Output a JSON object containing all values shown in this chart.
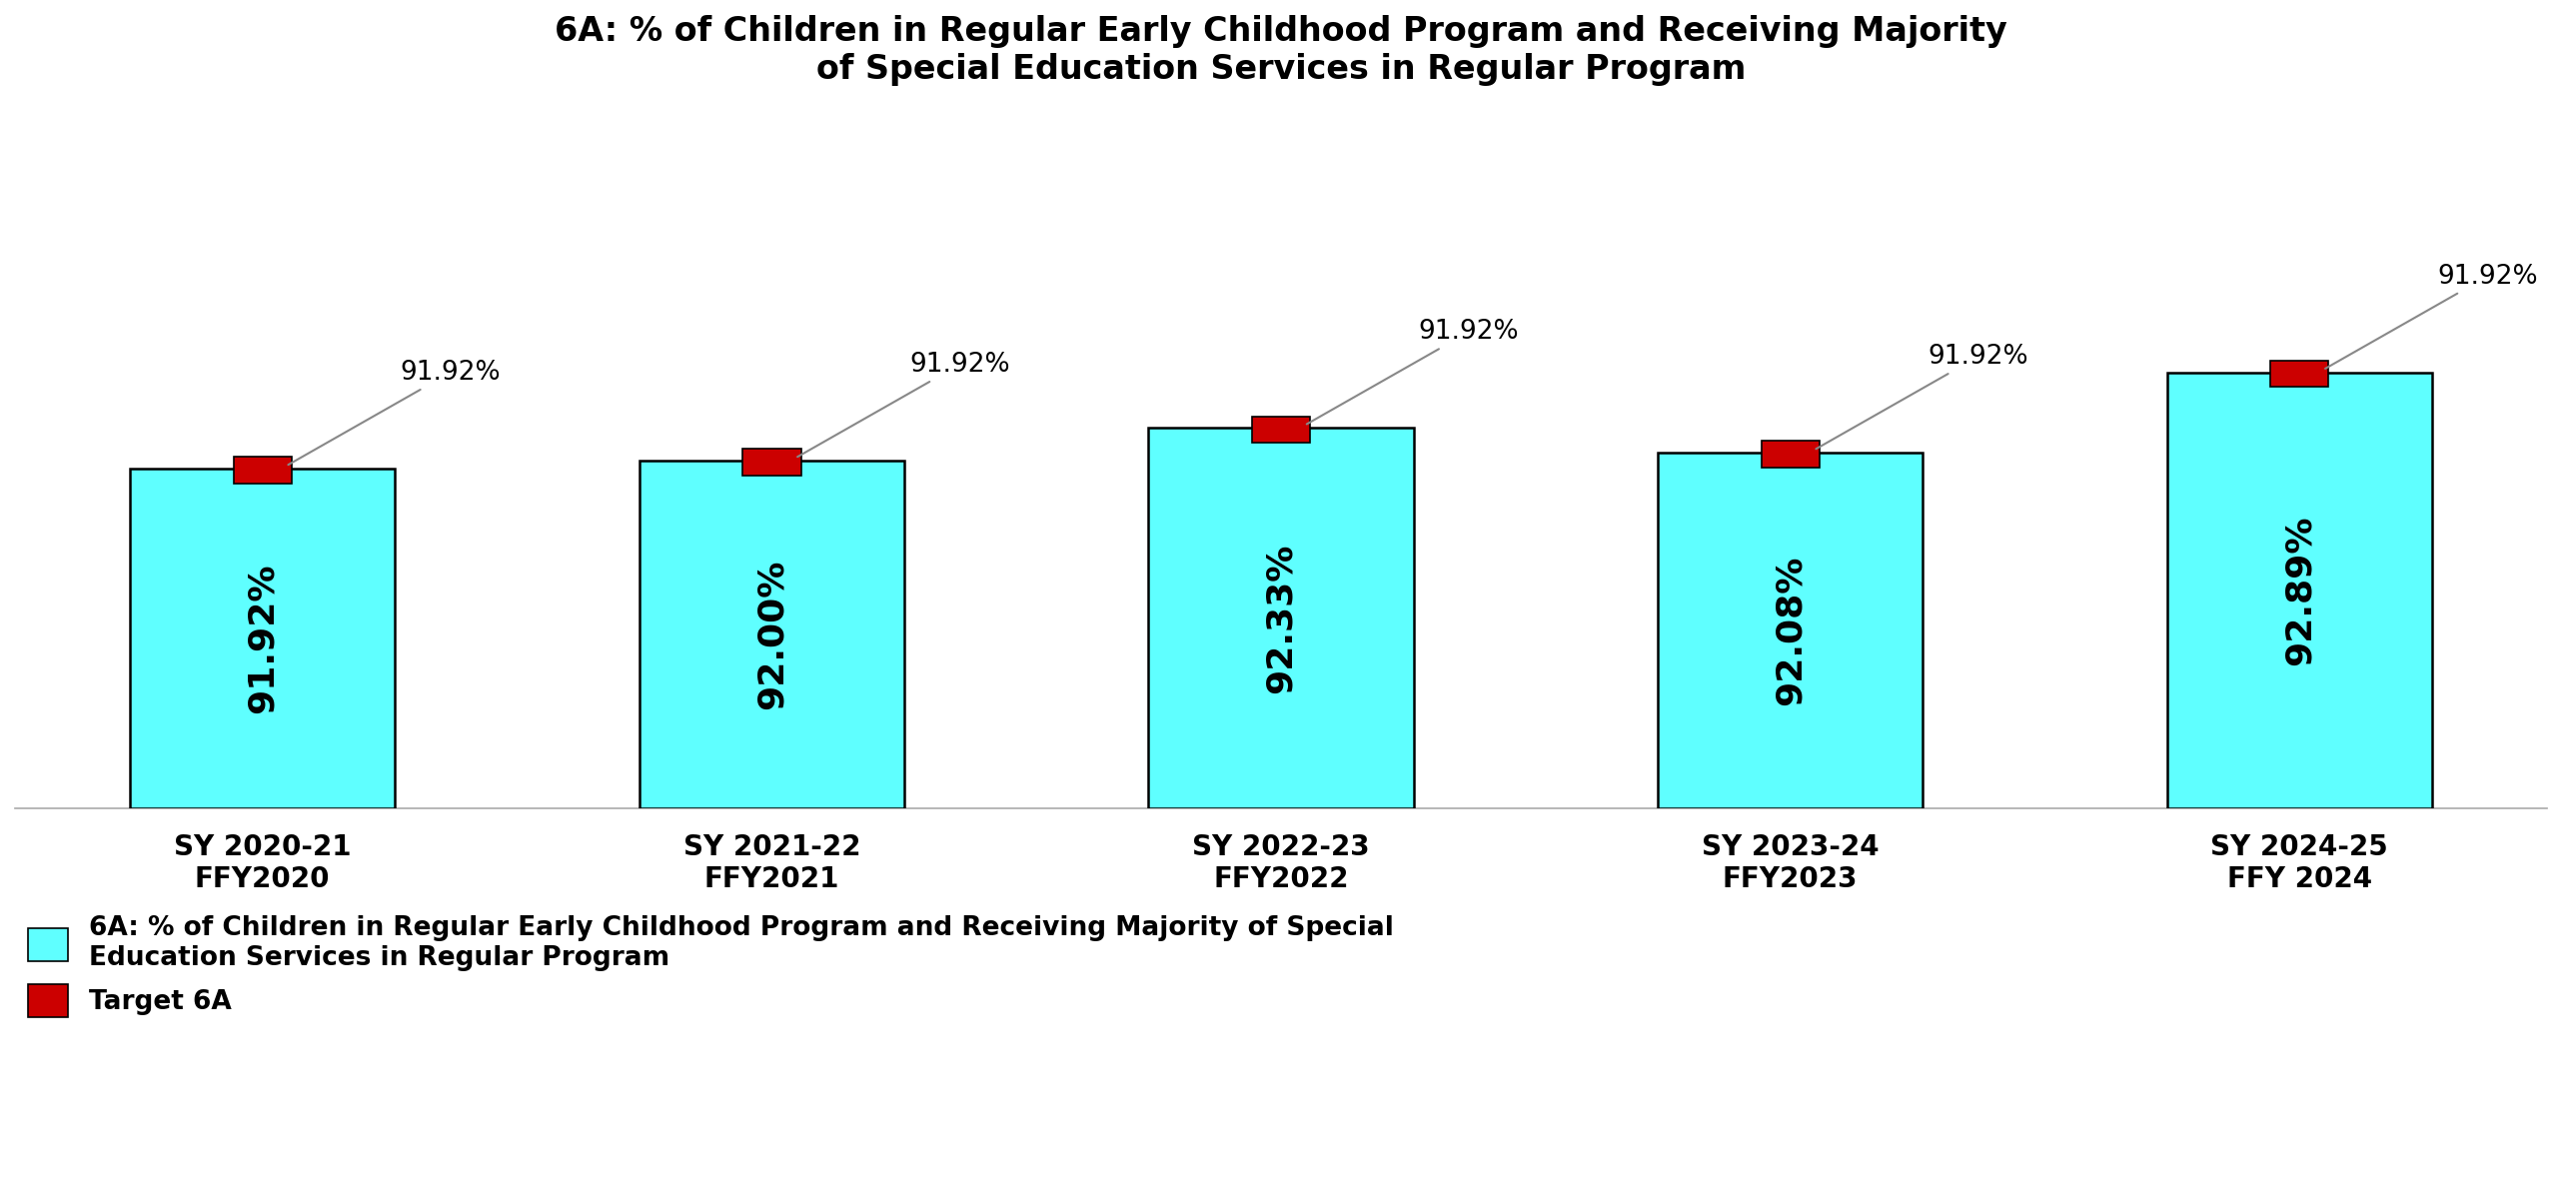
{
  "title": "6A: % of Children in Regular Early Childhood Program and Receiving Majority\nof Special Education Services in Regular Program",
  "categories": [
    "SY 2020-21\nFFY2020",
    "SY 2021-22\nFFY2021",
    "SY 2022-23\nFFY2022",
    "SY 2023-24\nFFY2023",
    "SY 2024-25\nFFY 2024"
  ],
  "bar_values": [
    91.92,
    92.0,
    92.33,
    92.08,
    92.89
  ],
  "bar_labels": [
    "91.92%",
    "92.00%",
    "92.33%",
    "92.08%",
    "92.89%"
  ],
  "target_value": 91.92,
  "target_label": "91.92%",
  "bar_color": "#5FFFFF",
  "bar_edge_color": "#000000",
  "target_color": "#CC0000",
  "title_fontsize": 24,
  "tick_fontsize": 20,
  "bar_label_fontsize": 26,
  "target_label_fontsize": 19,
  "legend_fontsize": 19,
  "ylim_min": 88.5,
  "ylim_max": 95.5,
  "bar_bottom": 88.5,
  "background_color": "#ffffff",
  "legend_bar_label": "6A: % of Children in Regular Early Childhood Program and Receiving Majority of Special\nEducation Services in Regular Program",
  "legend_target_label": "Target 6A"
}
